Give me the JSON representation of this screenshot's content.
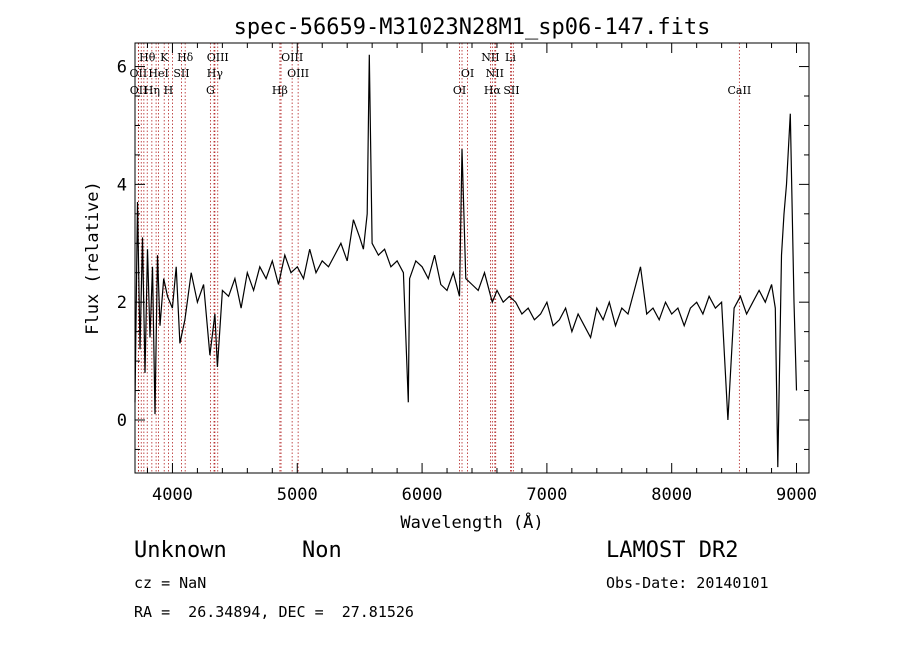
{
  "chart_data": {
    "type": "line",
    "title": "spec-56659-M31023N28M1_sp06-147.fits",
    "xlabel": "Wavelength (Å)",
    "ylabel": "Flux (relative)",
    "xlim": [
      3700,
      9100
    ],
    "ylim": [
      -0.9,
      6.4
    ],
    "xticks": [
      4000,
      5000,
      6000,
      7000,
      8000,
      9000
    ],
    "yticks": [
      0,
      2,
      4,
      6
    ],
    "grid": false,
    "line_color": "#000000",
    "marker_color": "#b22222",
    "series": [
      {
        "x": [
          3700,
          3720,
          3740,
          3760,
          3780,
          3800,
          3820,
          3840,
          3860,
          3880,
          3900,
          3930,
          3960,
          4000,
          4030,
          4060,
          4100,
          4150,
          4200,
          4250,
          4300,
          4340,
          4360,
          4400,
          4450,
          4500,
          4550,
          4600,
          4650,
          4700,
          4750,
          4800,
          4850,
          4900,
          4950,
          5000,
          5050,
          5100,
          5150,
          5200,
          5250,
          5300,
          5350,
          5400,
          5450,
          5500,
          5530,
          5560,
          5577,
          5600,
          5650,
          5700,
          5750,
          5800,
          5850,
          5890,
          5900,
          5950,
          6000,
          6050,
          6100,
          6150,
          6200,
          6250,
          6300,
          6320,
          6350,
          6400,
          6450,
          6500,
          6550,
          6563,
          6600,
          6650,
          6700,
          6750,
          6800,
          6850,
          6900,
          6950,
          7000,
          7050,
          7100,
          7150,
          7200,
          7250,
          7300,
          7350,
          7400,
          7450,
          7500,
          7550,
          7600,
          7650,
          7700,
          7750,
          7800,
          7850,
          7900,
          7950,
          8000,
          8050,
          8100,
          8150,
          8200,
          8250,
          8300,
          8350,
          8400,
          8450,
          8500,
          8550,
          8600,
          8650,
          8700,
          8750,
          8800,
          8830,
          8850,
          8880,
          8900,
          8920,
          8950,
          8980,
          9000
        ],
        "y": [
          0.3,
          3.7,
          1.2,
          3.1,
          0.8,
          2.9,
          1.4,
          2.6,
          0.1,
          2.8,
          1.6,
          2.4,
          2.1,
          1.9,
          2.6,
          1.3,
          1.7,
          2.5,
          2.0,
          2.3,
          1.1,
          1.8,
          0.9,
          2.2,
          2.1,
          2.4,
          1.9,
          2.5,
          2.2,
          2.6,
          2.4,
          2.7,
          2.3,
          2.8,
          2.5,
          2.6,
          2.4,
          2.9,
          2.5,
          2.7,
          2.6,
          2.8,
          3.0,
          2.7,
          3.4,
          3.1,
          2.9,
          3.5,
          6.2,
          3.0,
          2.8,
          2.9,
          2.6,
          2.7,
          2.5,
          0.3,
          2.4,
          2.7,
          2.6,
          2.4,
          2.8,
          2.3,
          2.2,
          2.5,
          2.1,
          4.6,
          2.4,
          2.3,
          2.2,
          2.5,
          2.1,
          2.0,
          2.2,
          2.0,
          2.1,
          2.0,
          1.8,
          1.9,
          1.7,
          1.8,
          2.0,
          1.6,
          1.7,
          1.9,
          1.5,
          1.8,
          1.6,
          1.4,
          1.9,
          1.7,
          2.0,
          1.6,
          1.9,
          1.8,
          2.2,
          2.6,
          1.8,
          1.9,
          1.7,
          2.0,
          1.8,
          1.9,
          1.6,
          1.9,
          2.0,
          1.8,
          2.1,
          1.9,
          2.0,
          0.0,
          1.9,
          2.1,
          1.8,
          2.0,
          2.2,
          2.0,
          2.3,
          1.9,
          -0.8,
          2.8,
          3.5,
          4.0,
          5.2,
          2.0,
          0.5
        ]
      }
    ],
    "line_markers": [
      {
        "label": "Hθ",
        "x": 3798,
        "row": 0
      },
      {
        "label": "OII",
        "x": 3727,
        "row": 1
      },
      {
        "label": "OII",
        "x": 3729,
        "row": 2
      },
      {
        "label": "K",
        "x": 3934,
        "row": 0
      },
      {
        "label": "HeI",
        "x": 3889,
        "row": 1
      },
      {
        "label": "Hη",
        "x": 3835,
        "row": 2
      },
      {
        "label": "H",
        "x": 3968,
        "row": 2
      },
      {
        "label": "Hδ",
        "x": 4102,
        "row": 0
      },
      {
        "label": "SII",
        "x": 4072,
        "row": 1
      },
      {
        "label": "OIII",
        "x": 4363,
        "row": 0
      },
      {
        "label": "Hγ",
        "x": 4340,
        "row": 1
      },
      {
        "label": "G",
        "x": 4304,
        "row": 2
      },
      {
        "label": "OIII",
        "x": 4959,
        "row": 0
      },
      {
        "label": "OIII",
        "x": 5007,
        "row": 1
      },
      {
        "label": "Hβ",
        "x": 4861,
        "row": 2
      },
      {
        "label": "OI",
        "x": 6364,
        "row": 1
      },
      {
        "label": "OI",
        "x": 6300,
        "row": 2
      },
      {
        "label": "NII",
        "x": 6548,
        "row": 0
      },
      {
        "label": "Li",
        "x": 6708,
        "row": 0
      },
      {
        "label": "NII",
        "x": 6583,
        "row": 1
      },
      {
        "label": "Hα",
        "x": 6563,
        "row": 2
      },
      {
        "label": "SII",
        "x": 6716,
        "row": 2
      },
      {
        "label": "CaII",
        "x": 8542,
        "row": 2
      }
    ],
    "extra_marker_lines": [
      3750,
      3771,
      3869,
      4000,
      4300,
      4333,
      4870,
      6320,
      6560,
      6590,
      6731
    ]
  },
  "info": {
    "class_label": "Unknown",
    "subclass_label": "Non",
    "cz_text": "cz = NaN",
    "coords_text": "RA =  26.34894, DEC =  27.81526",
    "survey": "LAMOST DR2",
    "obs_date": "Obs-Date: 20140101"
  }
}
